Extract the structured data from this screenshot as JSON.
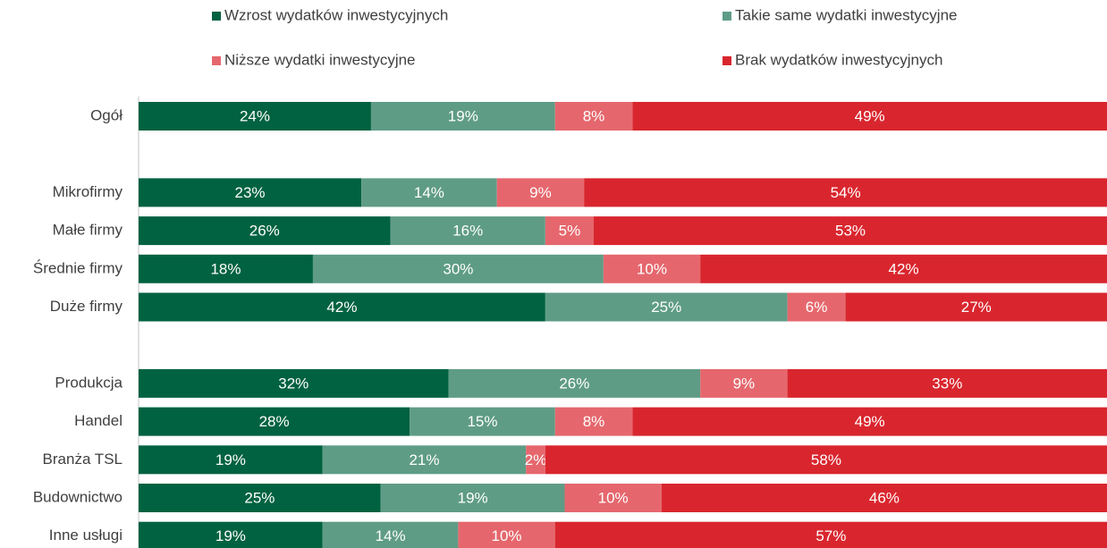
{
  "chart_data": {
    "type": "stacked_bar_horizontal",
    "categories": [
      "Ogół",
      null,
      "Mikrofirmy",
      "Małe firmy",
      "Średnie firmy",
      "Duże firmy",
      null,
      "Produkcja",
      "Handel",
      "Branża TSL",
      "Budownictwo",
      "Inne usługi"
    ],
    "xlim": [
      0,
      100
    ],
    "series": [
      {
        "name": "Wzrost wydatków inwestycyjnych",
        "color": "#006241",
        "values": [
          24,
          null,
          23,
          26,
          18,
          42,
          null,
          32,
          28,
          19,
          25,
          19
        ],
        "value_labels": [
          "24%",
          null,
          "23%",
          "26%",
          "18%",
          "42%",
          null,
          "32%",
          "28%",
          "19%",
          "25%",
          "19%"
        ]
      },
      {
        "name": "Takie same wydatki inwestycyjne",
        "color": "#5f9c86",
        "values": [
          19,
          null,
          14,
          16,
          30,
          25,
          null,
          26,
          15,
          21,
          19,
          14
        ],
        "value_labels": [
          "19%",
          null,
          "14%",
          "16%",
          "30%",
          "25%",
          null,
          "26%",
          "15%",
          "21%",
          "19%",
          "14%"
        ]
      },
      {
        "name": "Niższe wydatki inwestycyjne",
        "color": "#e5676d",
        "values": [
          8,
          null,
          9,
          5,
          10,
          6,
          null,
          9,
          8,
          2,
          10,
          10
        ],
        "value_labels": [
          "8%",
          null,
          "9%",
          "5%",
          "10%",
          "6%",
          null,
          "9%",
          "8%",
          "2%",
          "10%",
          "10%"
        ]
      },
      {
        "name": "Brak wydatków inwestycyjnych",
        "color": "#d9262e",
        "values": [
          49,
          null,
          54,
          53,
          42,
          27,
          null,
          33,
          49,
          58,
          46,
          57
        ],
        "value_labels": [
          "49%",
          null,
          "54%",
          "53%",
          "42%",
          "27%",
          null,
          "33%",
          "49%",
          "58%",
          "46%",
          "57%"
        ]
      }
    ],
    "legend": "top"
  }
}
